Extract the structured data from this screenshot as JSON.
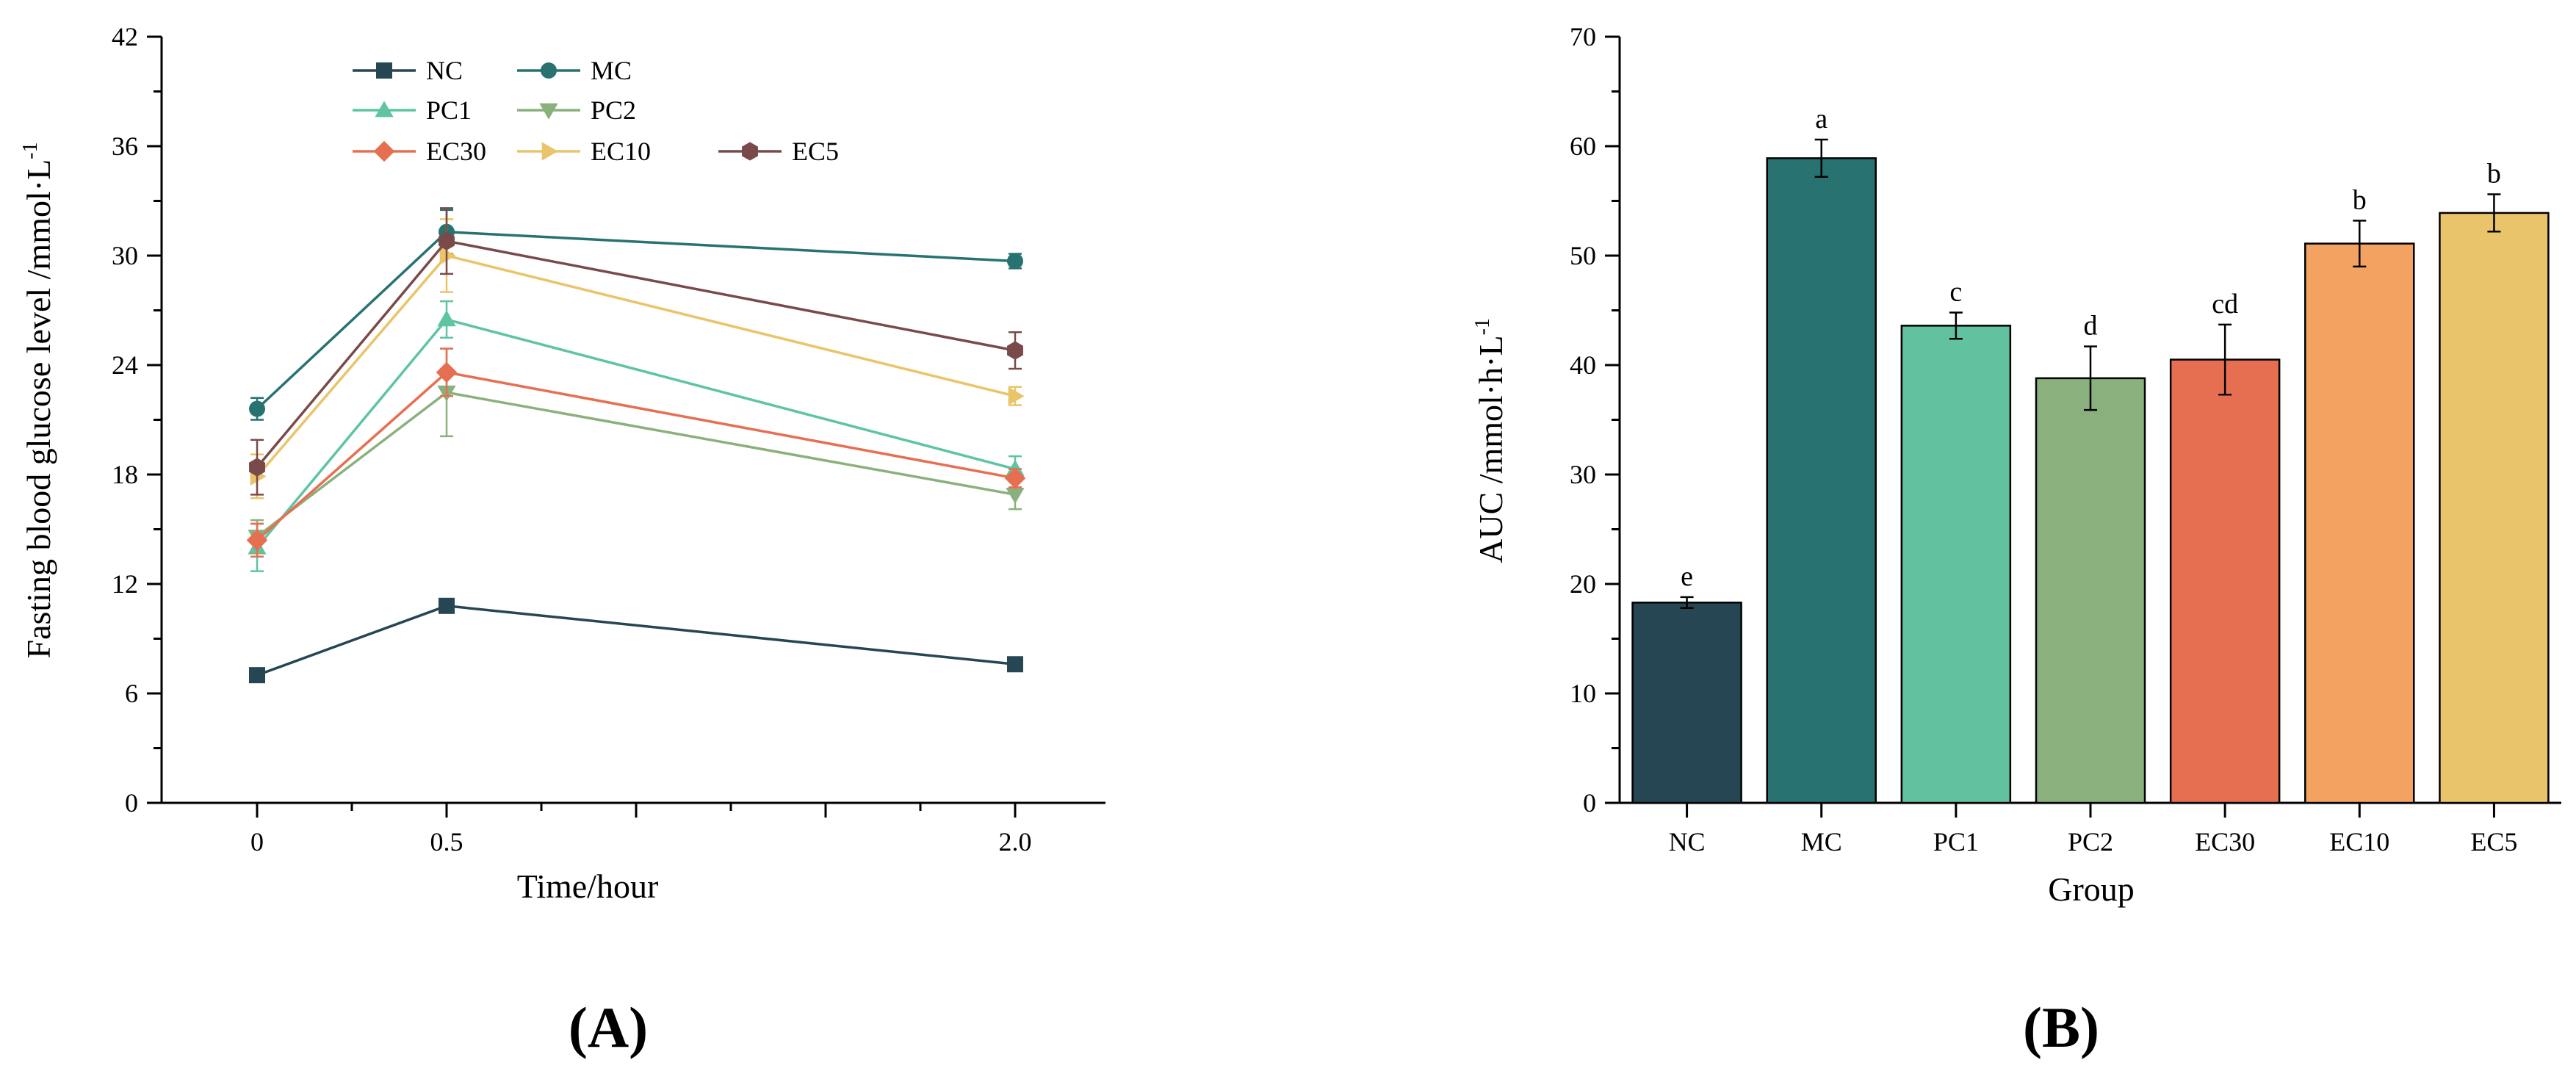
{
  "chart_data": [
    {
      "type": "line",
      "panel_label": "(A)",
      "xlabel": "Time/hour",
      "ylabel_main": "Fasting blood glucose level /mmol·L",
      "ylabel_sup": "-1",
      "x": [
        0,
        0.5,
        2.0
      ],
      "x_tick_labels": [
        "0",
        "0.5",
        "2.0"
      ],
      "ylim": [
        0,
        42
      ],
      "y_ticks": [
        0,
        6,
        12,
        18,
        24,
        30,
        36,
        42
      ],
      "legend_position": "top-left",
      "series": [
        {
          "name": "NC",
          "color": "#264653",
          "marker": "square",
          "values": [
            7.0,
            10.8,
            7.6
          ],
          "errors": [
            0.3,
            0.3,
            0.3
          ]
        },
        {
          "name": "MC",
          "color": "#287271",
          "marker": "circle",
          "values": [
            21.6,
            31.3,
            29.7
          ],
          "errors": [
            0.6,
            1.2,
            0.4
          ]
        },
        {
          "name": "PC1",
          "color": "#5EC4A3",
          "marker": "triangle",
          "values": [
            14.0,
            26.5,
            18.3
          ],
          "errors": [
            1.3,
            1.0,
            0.7
          ]
        },
        {
          "name": "PC2",
          "color": "#8AB17D",
          "marker": "triangle-down",
          "values": [
            14.6,
            22.5,
            16.9
          ],
          "errors": [
            0.9,
            2.4,
            0.8
          ]
        },
        {
          "name": "EC30",
          "color": "#E76F51",
          "marker": "diamond",
          "values": [
            14.4,
            23.6,
            17.8
          ],
          "errors": [
            0.9,
            1.3,
            0.5
          ]
        },
        {
          "name": "EC10",
          "color": "#E9C46A",
          "marker": "triangle-right",
          "values": [
            17.9,
            30.0,
            22.3
          ],
          "errors": [
            1.2,
            2.0,
            0.5
          ]
        },
        {
          "name": "EC5",
          "color": "#7A4A4A",
          "marker": "hexagon",
          "values": [
            18.4,
            30.8,
            24.8
          ],
          "errors": [
            1.5,
            1.8,
            1.0
          ]
        }
      ]
    },
    {
      "type": "bar",
      "panel_label": "(B)",
      "xlabel": "Group",
      "ylabel_main": "AUC /mmol·h·L",
      "ylabel_sup": "-1",
      "categories": [
        "NC",
        "MC",
        "PC1",
        "PC2",
        "EC30",
        "EC10",
        "EC5"
      ],
      "values": [
        18.3,
        58.9,
        43.6,
        38.8,
        40.5,
        51.1,
        53.9
      ],
      "errors": [
        0.5,
        1.7,
        1.2,
        2.9,
        3.2,
        2.1,
        1.7
      ],
      "significance": [
        "e",
        "a",
        "c",
        "d",
        "cd",
        "b",
        "b"
      ],
      "colors": [
        "#264653",
        "#287271",
        "#62C29F",
        "#8AB17D",
        "#E76F51",
        "#F4A261",
        "#E9C46A"
      ],
      "ylim": [
        0,
        70
      ],
      "y_ticks": [
        0,
        10,
        20,
        30,
        40,
        50,
        60,
        70
      ]
    }
  ]
}
